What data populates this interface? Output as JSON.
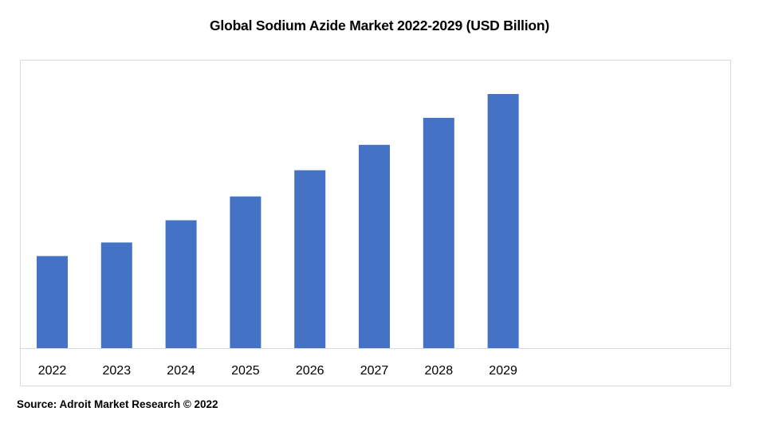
{
  "chart_data": {
    "type": "bar",
    "title": "Global Sodium Azide Market 2022-2029 (USD Billion)",
    "xlabel": "",
    "ylabel": "",
    "categories": [
      "2022",
      "2023",
      "2024",
      "2025",
      "2026",
      "2027",
      "2028",
      "2029"
    ],
    "values": [
      116,
      133,
      161,
      191,
      224,
      256,
      290,
      320
    ],
    "ylim": [
      0,
      340
    ],
    "grid": false,
    "bar_color": "#4472c4",
    "axis_color": "#d9d9d9",
    "y_tick_labels_shown": false
  },
  "source": "Source: Adroit Market Research © 2022"
}
